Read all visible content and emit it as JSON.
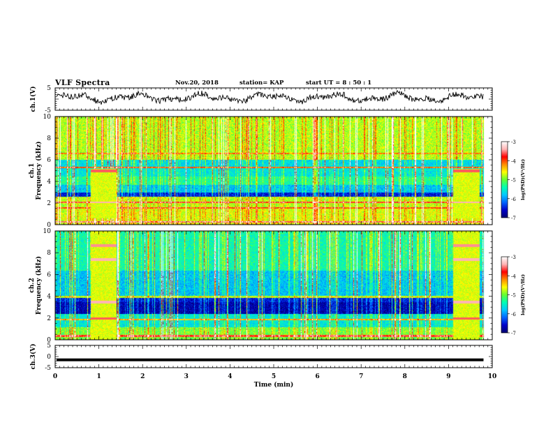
{
  "header": {
    "title": "VLF Spectra",
    "date": "Nov.20, 2018",
    "station": "station= KAP",
    "start_ut": "start  UT =   8  : 50 : 1"
  },
  "chart_data": [
    {
      "type": "line",
      "name": "ch1-waveform",
      "ylabel": "ch.1(V)",
      "xlim": [
        0,
        10
      ],
      "ylim": [
        -5,
        5
      ],
      "yticks": [
        5,
        -5
      ],
      "description_visual": "noisy oscillation around ~1 V between 0 and 9.8 min"
    },
    {
      "type": "heatmap",
      "name": "ch1-spectrogram",
      "ylabel_lines": [
        "ch.1",
        "Frequency (kHz)"
      ],
      "xlim": [
        0,
        10
      ],
      "ylim": [
        0,
        10
      ],
      "yticks": [
        0,
        2,
        4,
        6,
        8,
        10
      ],
      "colorbar": {
        "label": "log(PSD)(V²/Hz)",
        "range": [
          -7,
          -3
        ],
        "ticks": [
          -3,
          -4,
          -5,
          -6,
          -7
        ]
      },
      "data_end_min": 9.8,
      "bright_blocks_min": [
        [
          0.8,
          1.4
        ],
        [
          9.1,
          9.7
        ]
      ]
    },
    {
      "type": "heatmap",
      "name": "ch2-spectrogram",
      "ylabel_lines": [
        "ch.2",
        "Frequency (kHz)"
      ],
      "xlim": [
        0,
        10
      ],
      "ylim": [
        0,
        10
      ],
      "yticks": [
        0,
        2,
        4,
        6,
        8,
        10
      ],
      "colorbar": {
        "label": "log(PSD)(V²/Hz)",
        "range": [
          -7,
          -3
        ],
        "ticks": [
          -3,
          -4,
          -5,
          -6,
          -7
        ]
      },
      "data_end_min": 9.8,
      "bright_blocks_min": [
        [
          0.8,
          1.4
        ],
        [
          9.1,
          9.7
        ]
      ]
    },
    {
      "type": "line",
      "name": "ch3-waveform",
      "ylabel": "ch.3(V)",
      "xlim": [
        0,
        10
      ],
      "ylim": [
        -5,
        5
      ],
      "yticks": [
        5,
        0,
        -5
      ],
      "constant_value": -1.5,
      "data_end_min": 9.8
    }
  ],
  "xaxis": {
    "label": "Time (min)",
    "ticks": [
      0,
      1,
      2,
      3,
      4,
      5,
      6,
      7,
      8,
      9,
      10
    ]
  },
  "colors": {
    "colormap": [
      "#000070",
      "#0000c8",
      "#0064ff",
      "#00c8ff",
      "#00ffb4",
      "#64ff32",
      "#ffff00",
      "#ff8c00",
      "#ff0000",
      "#ffb4b4",
      "#ffffff"
    ]
  }
}
